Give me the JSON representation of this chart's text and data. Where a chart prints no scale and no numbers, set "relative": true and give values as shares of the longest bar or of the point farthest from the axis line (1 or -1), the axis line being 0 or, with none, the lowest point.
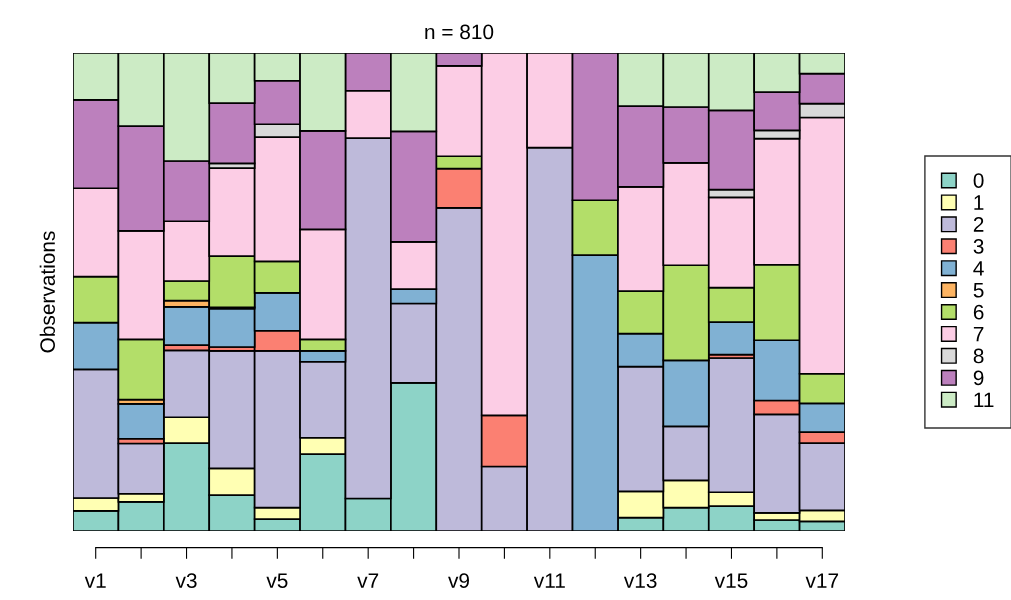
{
  "chart_data": {
    "type": "bar",
    "title": "n = 810",
    "ylabel": "Observations",
    "relative": true,
    "stacked": true,
    "legend": "right",
    "grid": false,
    "categories": [
      "v1",
      null,
      "v3",
      null,
      "v5",
      null,
      "v7",
      null,
      "v9",
      null,
      "v11",
      null,
      "v13",
      null,
      "v15",
      null,
      "v17"
    ],
    "series": [
      {
        "name": "0",
        "color": "#8dd3c7",
        "values": [
          0.042,
          0.061,
          0.184,
          0.075,
          0.025,
          0.161,
          0.068,
          0.31,
          null,
          null,
          null,
          null,
          0.028,
          0.049,
          0.052,
          0.023,
          0.02
        ]
      },
      {
        "name": "1",
        "color": "#ffffb3",
        "values": [
          0.027,
          0.017,
          0.054,
          0.056,
          0.024,
          0.034,
          null,
          null,
          null,
          null,
          null,
          null,
          0.055,
          0.057,
          0.029,
          0.015,
          0.023
        ]
      },
      {
        "name": "2",
        "color": "#bebada",
        "values": [
          0.269,
          0.105,
          0.14,
          0.246,
          0.328,
          0.159,
          0.754,
          0.166,
          0.676,
          0.135,
          0.802,
          null,
          0.261,
          0.113,
          0.281,
          0.206,
          0.141
        ]
      },
      {
        "name": "3",
        "color": "#fb8072",
        "values": [
          null,
          0.01,
          0.011,
          0.008,
          0.042,
          null,
          null,
          null,
          0.082,
          0.107,
          null,
          null,
          null,
          null,
          0.007,
          0.029,
          0.023
        ]
      },
      {
        "name": "4",
        "color": "#80b1d3",
        "values": [
          0.098,
          0.073,
          0.08,
          0.08,
          0.079,
          0.023,
          null,
          0.03,
          null,
          null,
          null,
          0.577,
          0.069,
          0.138,
          0.068,
          0.126,
          0.06
        ]
      },
      {
        "name": "5",
        "color": "#fdb462",
        "values": [
          null,
          0.009,
          0.013,
          0.003,
          null,
          null,
          null,
          null,
          null,
          null,
          null,
          null,
          null,
          null,
          null,
          null,
          null
        ]
      },
      {
        "name": "6",
        "color": "#b3de69",
        "values": [
          0.096,
          0.126,
          0.041,
          0.107,
          0.066,
          0.024,
          null,
          null,
          0.026,
          null,
          null,
          0.115,
          0.089,
          0.199,
          0.072,
          0.158,
          0.062
        ]
      },
      {
        "name": "7",
        "color": "#fccde5",
        "values": [
          0.185,
          0.227,
          0.125,
          0.184,
          0.26,
          0.23,
          0.099,
          0.099,
          0.189,
          0.758,
          0.198,
          null,
          0.218,
          0.214,
          0.189,
          0.264,
          0.536
        ]
      },
      {
        "name": "8",
        "color": "#d9d9d9",
        "values": [
          null,
          null,
          null,
          0.01,
          0.027,
          null,
          null,
          null,
          null,
          null,
          null,
          null,
          null,
          null,
          0.016,
          0.017,
          0.029
        ]
      },
      {
        "name": "9",
        "color": "#bc80bd",
        "values": [
          0.185,
          0.219,
          0.126,
          0.126,
          0.091,
          0.206,
          0.079,
          0.231,
          0.027,
          null,
          null,
          0.308,
          0.169,
          0.117,
          0.166,
          0.08,
          0.063
        ]
      },
      {
        "name": "11",
        "color": "#ccebc5",
        "values": [
          0.098,
          0.153,
          0.226,
          0.105,
          0.058,
          0.163,
          null,
          0.164,
          null,
          null,
          null,
          null,
          0.111,
          0.113,
          0.12,
          0.082,
          0.043
        ]
      }
    ]
  }
}
